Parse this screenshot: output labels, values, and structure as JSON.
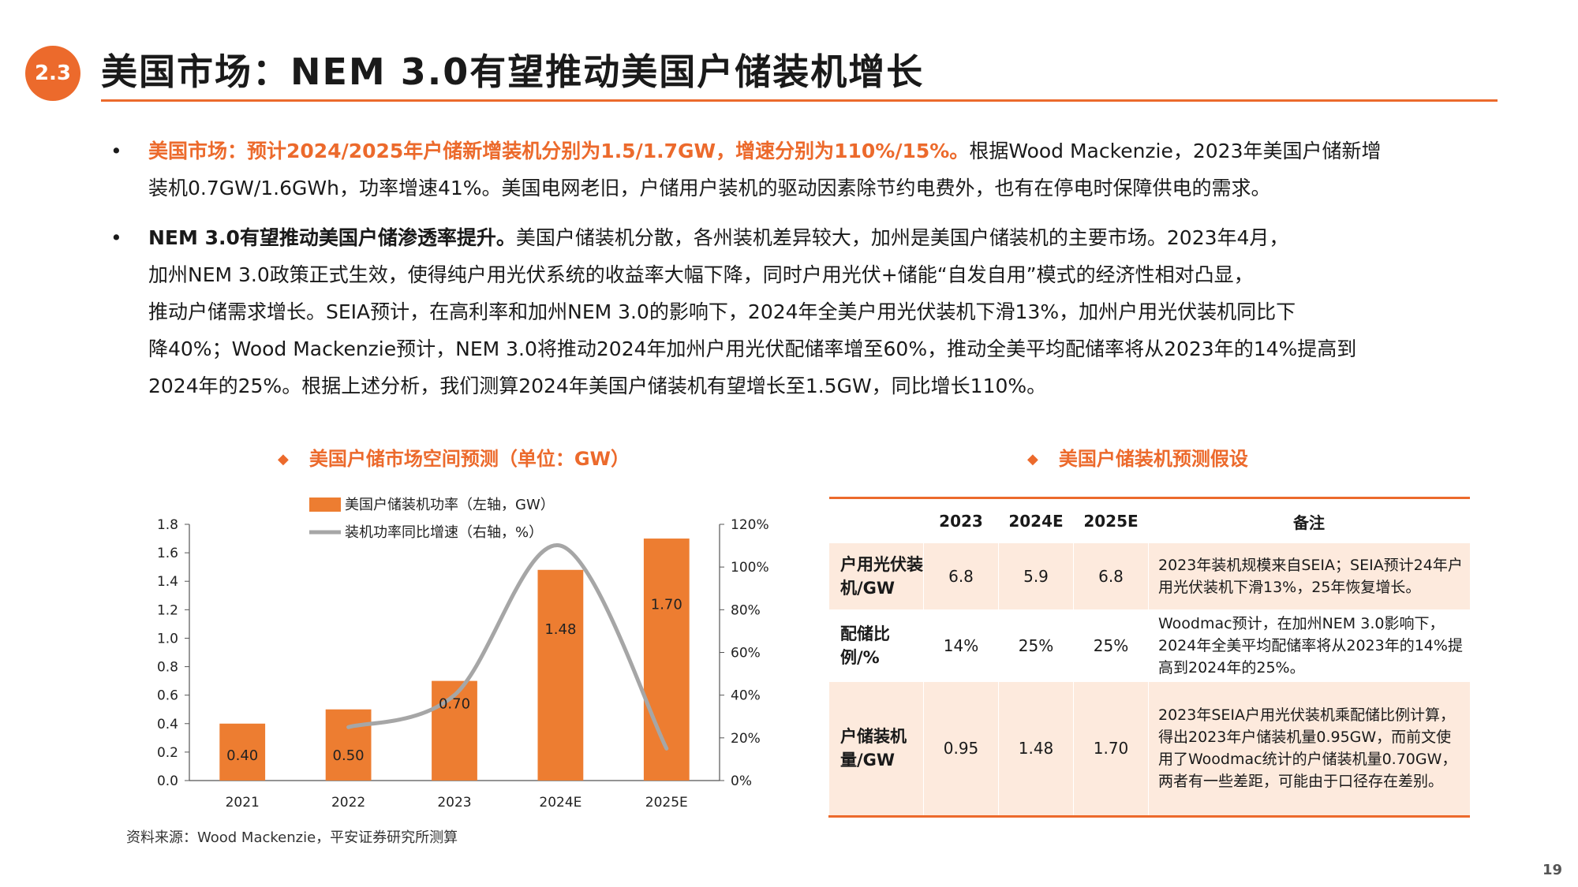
{
  "header": {
    "badge": "2.3",
    "title": "美国市场：NEM 3.0有望推动美国户储装机增长"
  },
  "bullets": [
    {
      "highlight": "美国市场：预计2024/2025年户储新增装机分别为1.5/1.7GW，增速分别为110%/15%。",
      "line1_rest": "根据Wood Mackenzie，2023年美国户储新增",
      "line2": "装机0.7GW/1.6GWh，功率增速41%。美国电网老旧，户储用户装机的驱动因素除节约电费外，也有在停电时保障供电的需求。"
    },
    {
      "bold": "NEM 3.0有望推动美国户储渗透率提升。",
      "line1_rest": "美国户储装机分散，各州装机差异较大，加州是美国户储装机的主要市场。2023年4月，",
      "line2": "加州NEM 3.0政策正式生效，使得纯户用光伏系统的收益率大幅下降，同时户用光伏+储能“自发自用”模式的经济性相对凸显，",
      "line3": "推动户储需求增长。SEIA预计，在高利率和加州NEM 3.0的影响下，2024年全美户用光伏装机下滑13%，加州户用光伏装机同比下",
      "line4": "降40%；Wood Mackenzie预计，NEM 3.0将推动2024年加州户用光伏配储率增至60%，推动全美平均配储率将从2023年的14%提高到",
      "line5": "2024年的25%。根据上述分析，我们测算2024年美国户储装机有望增长至1.5GW，同比增长110%。"
    }
  ],
  "left_section": {
    "diamond": "◆",
    "title": "美国户储市场空间预测（单位：GW）"
  },
  "right_section": {
    "diamond": "◆",
    "title": "美国户储装机预测假设"
  },
  "chart_data": {
    "type": "bar",
    "categories": [
      "2021",
      "2022",
      "2023",
      "2024E",
      "2025E"
    ],
    "series": [
      {
        "name": "美国户储装机功率（左轴，GW）",
        "type": "bar",
        "axis": "left",
        "values": [
          0.4,
          0.5,
          0.7,
          1.48,
          1.7
        ],
        "data_labels": [
          "0.40",
          "0.50",
          "0.70",
          "1.48",
          "1.70"
        ],
        "color": "#ed7d31"
      },
      {
        "name": "装机功率同比增速（右轴，%）",
        "type": "line",
        "axis": "right",
        "x": [
          "2022",
          "2023",
          "2024E",
          "2025E"
        ],
        "values": [
          25,
          40,
          110,
          15
        ],
        "color": "#a6a6a6"
      }
    ],
    "ylim": [
      0,
      1.8
    ],
    "y_ticks": [
      "0.0",
      "0.2",
      "0.4",
      "0.6",
      "0.8",
      "1.0",
      "1.2",
      "1.4",
      "1.6",
      "1.8"
    ],
    "y2lim": [
      0,
      120
    ],
    "y2_ticks": [
      "0%",
      "20%",
      "40%",
      "60%",
      "80%",
      "100%",
      "120%"
    ],
    "legend": "top-left",
    "grid": false
  },
  "source": "资料来源：Wood Mackenzie，平安证券研究所测算",
  "table": {
    "headers": [
      "",
      "2023",
      "2024E",
      "2025E",
      "备注"
    ],
    "rows": [
      {
        "label": "户用光伏装机/GW",
        "values": [
          "6.8",
          "5.9",
          "6.8"
        ],
        "note": "2023年装机规模来自SEIA；SEIA预计24年户用光伏装机下滑13%，25年恢复增长。"
      },
      {
        "label": "配储比例/%",
        "values": [
          "14%",
          "25%",
          "25%"
        ],
        "note": "Woodmac预计，在加州NEM 3.0影响下，2024年全美平均配储率将从2023年的14%提高到2024年的25%。"
      },
      {
        "label": "户储装机量/GW",
        "values": [
          "0.95",
          "1.48",
          "1.70"
        ],
        "note": "2023年SEIA户用光伏装机乘配储比例计算，得出2023年户储装机量0.95GW，而前文使用了Woodmac统计的户储装机量0.70GW，两者有一些差距，可能由于口径存在差别。"
      }
    ]
  },
  "page_number": "19",
  "colors": {
    "accent": "#ec6a2c",
    "bar": "#ed7d31",
    "line": "#a6a6a6",
    "shade": "#fdeadd"
  }
}
